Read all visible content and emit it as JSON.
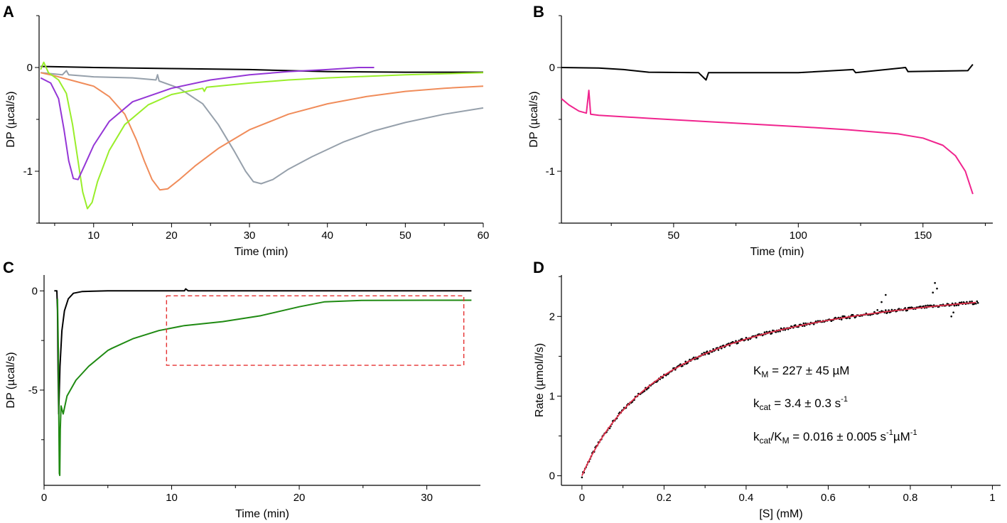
{
  "chart_data": [
    {
      "panel": "A",
      "type": "line",
      "xlabel": "Time (min)",
      "ylabel": "DP (µcal/s)",
      "xlim": [
        3,
        60
      ],
      "ylim": [
        -1.5,
        0.5
      ],
      "xticks": [
        10,
        20,
        30,
        40,
        50,
        60
      ],
      "yticks": [
        0,
        -1
      ],
      "series": [
        {
          "name": "black",
          "color": "#000000",
          "points": [
            [
              3.2,
              0.01
            ],
            [
              10,
              0.0
            ],
            [
              20,
              -0.01
            ],
            [
              30,
              -0.02
            ],
            [
              40,
              -0.04
            ],
            [
              50,
              -0.045
            ],
            [
              60,
              -0.045
            ]
          ]
        },
        {
          "name": "grey",
          "color": "#96a0ab",
          "points": [
            [
              3.2,
              -0.05
            ],
            [
              6,
              -0.07
            ],
            [
              6.5,
              -0.03
            ],
            [
              6.8,
              -0.07
            ],
            [
              10,
              -0.09
            ],
            [
              15,
              -0.1
            ],
            [
              18,
              -0.12
            ],
            [
              18.2,
              -0.07
            ],
            [
              18.4,
              -0.13
            ],
            [
              21,
              -0.2
            ],
            [
              24,
              -0.35
            ],
            [
              26,
              -0.55
            ],
            [
              28,
              -0.8
            ],
            [
              29.5,
              -1.0
            ],
            [
              30.5,
              -1.1
            ],
            [
              31.5,
              -1.12
            ],
            [
              33,
              -1.08
            ],
            [
              35,
              -0.98
            ],
            [
              38,
              -0.86
            ],
            [
              42,
              -0.72
            ],
            [
              46,
              -0.61
            ],
            [
              50,
              -0.53
            ],
            [
              55,
              -0.45
            ],
            [
              60,
              -0.39
            ]
          ]
        },
        {
          "name": "orange",
          "color": "#f08c5a",
          "points": [
            [
              3.2,
              -0.05
            ],
            [
              5,
              -0.08
            ],
            [
              7,
              -0.12
            ],
            [
              10,
              -0.18
            ],
            [
              12,
              -0.28
            ],
            [
              14,
              -0.45
            ],
            [
              15.5,
              -0.7
            ],
            [
              16.5,
              -0.9
            ],
            [
              17.5,
              -1.08
            ],
            [
              18.5,
              -1.18
            ],
            [
              19.5,
              -1.17
            ],
            [
              21,
              -1.08
            ],
            [
              23,
              -0.95
            ],
            [
              26,
              -0.78
            ],
            [
              30,
              -0.6
            ],
            [
              35,
              -0.45
            ],
            [
              40,
              -0.35
            ],
            [
              45,
              -0.28
            ],
            [
              50,
              -0.23
            ],
            [
              55,
              -0.2
            ],
            [
              60,
              -0.18
            ]
          ]
        },
        {
          "name": "green",
          "color": "#99ee2a",
          "points": [
            [
              3.2,
              -0.02
            ],
            [
              3.6,
              0.05
            ],
            [
              4.2,
              -0.05
            ],
            [
              5.5,
              -0.12
            ],
            [
              6.5,
              -0.25
            ],
            [
              7.3,
              -0.55
            ],
            [
              8,
              -0.9
            ],
            [
              8.6,
              -1.2
            ],
            [
              9.2,
              -1.36
            ],
            [
              9.8,
              -1.3
            ],
            [
              10.5,
              -1.1
            ],
            [
              12,
              -0.8
            ],
            [
              14,
              -0.55
            ],
            [
              17,
              -0.36
            ],
            [
              20,
              -0.26
            ],
            [
              24,
              -0.2
            ],
            [
              24.2,
              -0.23
            ],
            [
              24.5,
              -0.19
            ],
            [
              30,
              -0.15
            ],
            [
              35,
              -0.12
            ],
            [
              40,
              -0.1
            ],
            [
              50,
              -0.07
            ],
            [
              60,
              -0.05
            ]
          ]
        },
        {
          "name": "purple",
          "color": "#9436d6",
          "points": [
            [
              3.2,
              -0.1
            ],
            [
              4.5,
              -0.15
            ],
            [
              5.5,
              -0.3
            ],
            [
              6.2,
              -0.6
            ],
            [
              6.8,
              -0.9
            ],
            [
              7.4,
              -1.07
            ],
            [
              8,
              -1.08
            ],
            [
              8.8,
              -0.95
            ],
            [
              10,
              -0.75
            ],
            [
              12,
              -0.52
            ],
            [
              15,
              -0.33
            ],
            [
              20,
              -0.2
            ],
            [
              25,
              -0.12
            ],
            [
              30,
              -0.07
            ],
            [
              35,
              -0.04
            ],
            [
              40,
              -0.02
            ],
            [
              44,
              0.0
            ],
            [
              46,
              0.0
            ]
          ]
        }
      ]
    },
    {
      "panel": "B",
      "type": "line",
      "xlabel": "Time (min)",
      "ylabel": "DP (µcal/s)",
      "xlim": [
        5,
        178
      ],
      "ylim": [
        -1.5,
        0.5
      ],
      "xticks": [
        50,
        100,
        150
      ],
      "yticks": [
        0,
        -1
      ],
      "series": [
        {
          "name": "black",
          "color": "#000000",
          "points": [
            [
              5,
              0.0
            ],
            [
              20,
              -0.005
            ],
            [
              30,
              -0.02
            ],
            [
              40,
              -0.045
            ],
            [
              60,
              -0.05
            ],
            [
              63,
              -0.12
            ],
            [
              64,
              -0.05
            ],
            [
              100,
              -0.05
            ],
            [
              122,
              -0.02
            ],
            [
              123,
              -0.05
            ],
            [
              143,
              -0.0
            ],
            [
              144,
              -0.04
            ],
            [
              168,
              -0.03
            ],
            [
              170,
              0.03
            ]
          ]
        },
        {
          "name": "pink",
          "color": "#f0248e",
          "points": [
            [
              5,
              -0.3
            ],
            [
              8,
              -0.36
            ],
            [
              12,
              -0.42
            ],
            [
              15,
              -0.44
            ],
            [
              16,
              -0.22
            ],
            [
              16.7,
              -0.45
            ],
            [
              20,
              -0.46
            ],
            [
              40,
              -0.49
            ],
            [
              70,
              -0.53
            ],
            [
              100,
              -0.57
            ],
            [
              120,
              -0.6
            ],
            [
              140,
              -0.64
            ],
            [
              150,
              -0.68
            ],
            [
              158,
              -0.75
            ],
            [
              163,
              -0.85
            ],
            [
              167,
              -1.0
            ],
            [
              170,
              -1.22
            ]
          ]
        }
      ]
    },
    {
      "panel": "C",
      "type": "line",
      "xlabel": "Time (min)",
      "ylabel": "DP (µcal/s)",
      "xlim": [
        0,
        34.2
      ],
      "ylim": [
        -9.8,
        0.8
      ],
      "xticks": [
        0,
        10,
        20,
        30
      ],
      "yticks": [
        0,
        -5
      ],
      "series": [
        {
          "name": "black",
          "color": "#000000",
          "points": [
            [
              0.8,
              0.0
            ],
            [
              1.0,
              0.0
            ],
            [
              1.05,
              -1.0
            ],
            [
              1.1,
              -4.0
            ],
            [
              1.15,
              -6.2
            ],
            [
              1.25,
              -3.8
            ],
            [
              1.4,
              -2.0
            ],
            [
              1.6,
              -1.0
            ],
            [
              1.9,
              -0.4
            ],
            [
              2.3,
              -0.12
            ],
            [
              3,
              -0.03
            ],
            [
              5,
              0.0
            ],
            [
              11,
              0.0
            ],
            [
              11.1,
              0.1
            ],
            [
              11.3,
              0.0
            ],
            [
              20,
              0.0
            ],
            [
              33.5,
              0.0
            ]
          ]
        },
        {
          "name": "green",
          "color": "#1f8a12",
          "points": [
            [
              1.05,
              -0.4
            ],
            [
              1.12,
              -3.0
            ],
            [
              1.16,
              -6.5
            ],
            [
              1.2,
              -9.2
            ],
            [
              1.23,
              -9.3
            ],
            [
              1.27,
              -7.0
            ],
            [
              1.33,
              -5.8
            ],
            [
              1.5,
              -6.2
            ],
            [
              1.8,
              -5.3
            ],
            [
              2.5,
              -4.5
            ],
            [
              3.5,
              -3.8
            ],
            [
              5,
              -3.0
            ],
            [
              5.3,
              -2.9
            ],
            [
              7,
              -2.4
            ],
            [
              9,
              -2.0
            ],
            [
              11,
              -1.75
            ],
            [
              14,
              -1.55
            ],
            [
              17,
              -1.25
            ],
            [
              20,
              -0.8
            ],
            [
              22,
              -0.55
            ],
            [
              25,
              -0.48
            ],
            [
              30,
              -0.47
            ],
            [
              33.5,
              -0.47
            ]
          ]
        }
      ],
      "annotation_box": {
        "x0": 9.6,
        "x1": 32.9,
        "y0": -3.75,
        "y1": -0.25,
        "color": "#e53030"
      }
    },
    {
      "panel": "D",
      "type": "scatter",
      "xlabel": "[S] (mM)",
      "ylabel": "Rate (µmol/l/s)",
      "xlim": [
        -0.05,
        1.02
      ],
      "ylim": [
        -0.12,
        2.52
      ],
      "xticks": [
        0,
        0.2,
        0.4,
        0.6,
        0.8,
        1
      ],
      "yticks": [
        0,
        1,
        2
      ],
      "fit": {
        "model": "michaelis-menten",
        "Vmax": 2.69,
        "Km": 0.227,
        "x_range": [
          0,
          0.96
        ],
        "color": "#e0304a"
      },
      "data_color": "#000000",
      "outliers": [
        [
          0.72,
          2.08
        ],
        [
          0.73,
          2.18
        ],
        [
          0.74,
          2.27
        ],
        [
          0.855,
          2.3
        ],
        [
          0.86,
          2.42
        ],
        [
          0.865,
          2.35
        ],
        [
          0.9,
          2.0
        ],
        [
          0.905,
          2.05
        ]
      ],
      "annotations": [
        {
          "base": "K",
          "sub": "M",
          "rest": " = 227 ± 45 µM"
        },
        {
          "base": "k",
          "sub": "cat",
          "rest": " = 3.4 ± 0.3 s",
          "sup": "-1"
        },
        {
          "base": "k",
          "sub": "cat",
          "mid": "/K",
          "sub2": "M",
          "rest": " = 0.016 ± 0.005  s",
          "sup": "-1",
          "rest2": "µM",
          "sup2": "-1"
        }
      ]
    }
  ],
  "panel_letters": [
    "A",
    "B",
    "C",
    "D"
  ]
}
